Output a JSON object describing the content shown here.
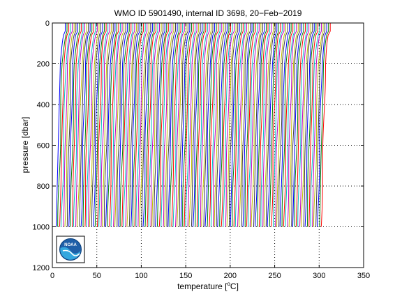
{
  "chart_data": {
    "type": "line",
    "title": "WMO ID 5901490, internal ID 3698, 20−Feb−2019",
    "xlabel_prefix": "temperature [",
    "xlabel_sup": "o",
    "xlabel_suffix": "C]",
    "ylabel": "pressure [dbar]",
    "xlim": [
      0,
      350
    ],
    "ylim": [
      0,
      1200
    ],
    "y_reversed": true,
    "grid": true,
    "x_ticks": [
      "0",
      "50",
      "100",
      "150",
      "200",
      "250",
      "300",
      "350"
    ],
    "x_tick_values": [
      0,
      50,
      100,
      150,
      200,
      250,
      300,
      350
    ],
    "y_ticks": [
      "0",
      "200",
      "400",
      "600",
      "800",
      "1000",
      "1200"
    ],
    "y_tick_values": [
      0,
      200,
      400,
      600,
      800,
      1000,
      1200
    ],
    "profiles": {
      "count": 150,
      "offset_start": 0,
      "offset_step": 2,
      "surface_pressure": 0,
      "max_pressure": 1000,
      "surface_temp": 14.5,
      "mixed_layer_depth": 40,
      "thermocline_base_pressure": 200,
      "thermocline_base_temp": 9,
      "deep_temp": 4.3
    },
    "colors": [
      "#0000ff",
      "#008000",
      "#ff0000",
      "#00bfbf",
      "#bf00bf",
      "#bfbf00",
      "#404040"
    ]
  },
  "logo": {
    "name": "noaa-logo",
    "text": "NOAA"
  }
}
